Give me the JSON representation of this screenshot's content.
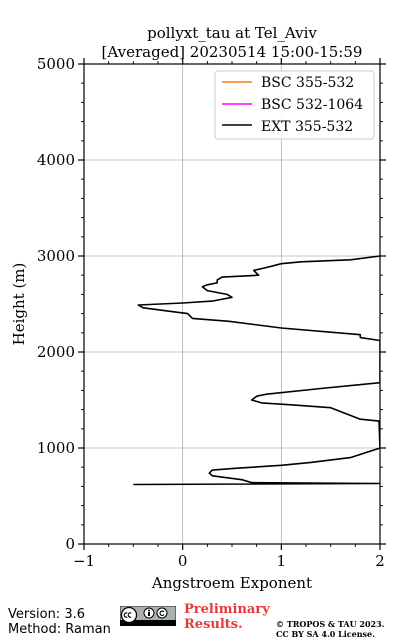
{
  "chart_data": {
    "type": "line",
    "title": "pollyxt_tau at Tel_Aviv",
    "subtitle": "[Averaged] 20230514 15:00-15:59",
    "xlabel": "Angstroem Exponent",
    "ylabel": "Height (m)",
    "xlim": [
      -1,
      2
    ],
    "ylim": [
      0,
      5000
    ],
    "xticks": [
      "−1",
      "0",
      "1",
      "2"
    ],
    "yticks": [
      "0",
      "1000",
      "2000",
      "3000",
      "4000",
      "5000"
    ],
    "xtick_values": [
      -1,
      0,
      1,
      2
    ],
    "ytick_values": [
      0,
      1000,
      2000,
      3000,
      4000,
      5000
    ],
    "grid": true,
    "legend_position": "top-right",
    "series": [
      {
        "name": "BSC 355-532",
        "color": "#ff7f0e",
        "points": []
      },
      {
        "name": "BSC 532-1064",
        "color": "#ff00ff",
        "points": []
      },
      {
        "name": "EXT 355-532",
        "color": "#000000",
        "points": [
          [
            -0.5,
            620
          ],
          [
            2.0,
            630
          ],
          [
            0.7,
            640
          ],
          [
            0.6,
            670
          ],
          [
            0.3,
            710
          ],
          [
            0.27,
            740
          ],
          [
            0.3,
            770
          ],
          [
            0.55,
            790
          ],
          [
            1.0,
            820
          ],
          [
            1.3,
            850
          ],
          [
            1.7,
            900
          ],
          [
            2.0,
            1000
          ],
          [
            1.99,
            1280
          ],
          [
            1.8,
            1300
          ],
          [
            1.5,
            1420
          ],
          [
            1.1,
            1450
          ],
          [
            0.8,
            1470
          ],
          [
            0.7,
            1500
          ],
          [
            0.75,
            1540
          ],
          [
            0.85,
            1560
          ],
          [
            1.4,
            1620
          ],
          [
            2.0,
            1680
          ],
          [
            2.0,
            2120
          ],
          [
            1.8,
            2150
          ],
          [
            1.8,
            2180
          ],
          [
            1.0,
            2250
          ],
          [
            0.47,
            2320
          ],
          [
            0.1,
            2350
          ],
          [
            0.05,
            2400
          ],
          [
            -0.1,
            2420
          ],
          [
            -0.4,
            2460
          ],
          [
            -0.45,
            2490
          ],
          [
            0.0,
            2510
          ],
          [
            0.3,
            2530
          ],
          [
            0.5,
            2570
          ],
          [
            0.45,
            2600
          ],
          [
            0.25,
            2640
          ],
          [
            0.2,
            2680
          ],
          [
            0.25,
            2700
          ],
          [
            0.35,
            2720
          ],
          [
            0.35,
            2750
          ],
          [
            0.4,
            2780
          ],
          [
            0.77,
            2800
          ],
          [
            0.72,
            2850
          ],
          [
            0.85,
            2880
          ],
          [
            1.0,
            2920
          ],
          [
            1.2,
            2940
          ],
          [
            1.7,
            2960
          ],
          [
            2.0,
            3000
          ]
        ]
      }
    ]
  },
  "footer": {
    "version": "Version: 3.6",
    "method": "Method: Raman",
    "preliminary_line1": "Preliminary",
    "preliminary_line2": "Results.",
    "copyright_line1": "© TROPOS & TAU 2023.",
    "copyright_line2": "CC BY SA 4.0 License."
  }
}
